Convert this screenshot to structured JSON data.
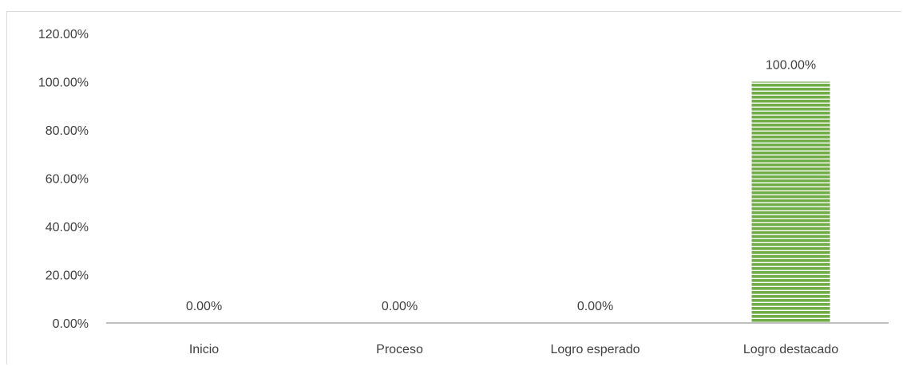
{
  "chart_data": {
    "type": "bar",
    "categories": [
      "Inicio",
      "Proceso",
      "Logro esperado",
      "Logro destacado"
    ],
    "values": [
      0,
      0,
      0,
      100
    ],
    "data_labels": [
      "0.00%",
      "0.00%",
      "0.00%",
      "100.00%"
    ],
    "y_ticks": [
      0,
      20,
      40,
      60,
      80,
      100,
      120
    ],
    "y_tick_labels": [
      "0.00%",
      "20.00%",
      "40.00%",
      "60.00%",
      "80.00%",
      "100.00%",
      "120.00%"
    ],
    "ylim": [
      0,
      120
    ],
    "grid": false,
    "legend": "none",
    "title": "",
    "xlabel": "",
    "ylabel": "",
    "colors": {
      "bar": "#70ad47",
      "bar_stripe": "#ffffff",
      "axis": "#bfbfbf",
      "text": "#404040"
    }
  }
}
